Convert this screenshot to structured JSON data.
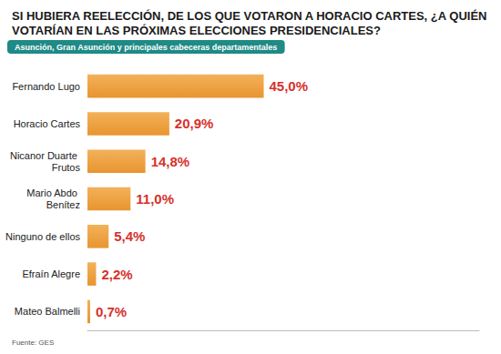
{
  "chart_data": {
    "type": "bar",
    "title": "SI HUBIERA REELECCIÓN, DE LOS QUE VOTARON A HORACIO CARTES, ¿A QUIÉN VOTARÍAN EN LAS PRÓXIMAS ELECCIONES PRESIDENCIALES?",
    "subtitle": "Asunción, Gran Asunción y principales cabeceras departamentales",
    "source": "Fuente: GES",
    "categories": [
      "Fernando Lugo",
      "Horacio Cartes",
      "Nicanor Duarte Frutos",
      "Mario Abdo Benítez",
      "Ninguno de ellos",
      "Efraín Alegre",
      "Mateo Balmelli"
    ],
    "values": [
      45.0,
      20.9,
      14.8,
      11.0,
      5.4,
      2.2,
      0.7
    ],
    "value_labels": [
      "45,0%",
      "20,9%",
      "14,8%",
      "11,0%",
      "5,4%",
      "2,2%",
      "0,7%"
    ],
    "color": "#e8952f",
    "xlim": [
      0,
      100
    ],
    "orientation": "horizontal",
    "data_labels": true,
    "tick_labels": "y",
    "grid": false
  }
}
